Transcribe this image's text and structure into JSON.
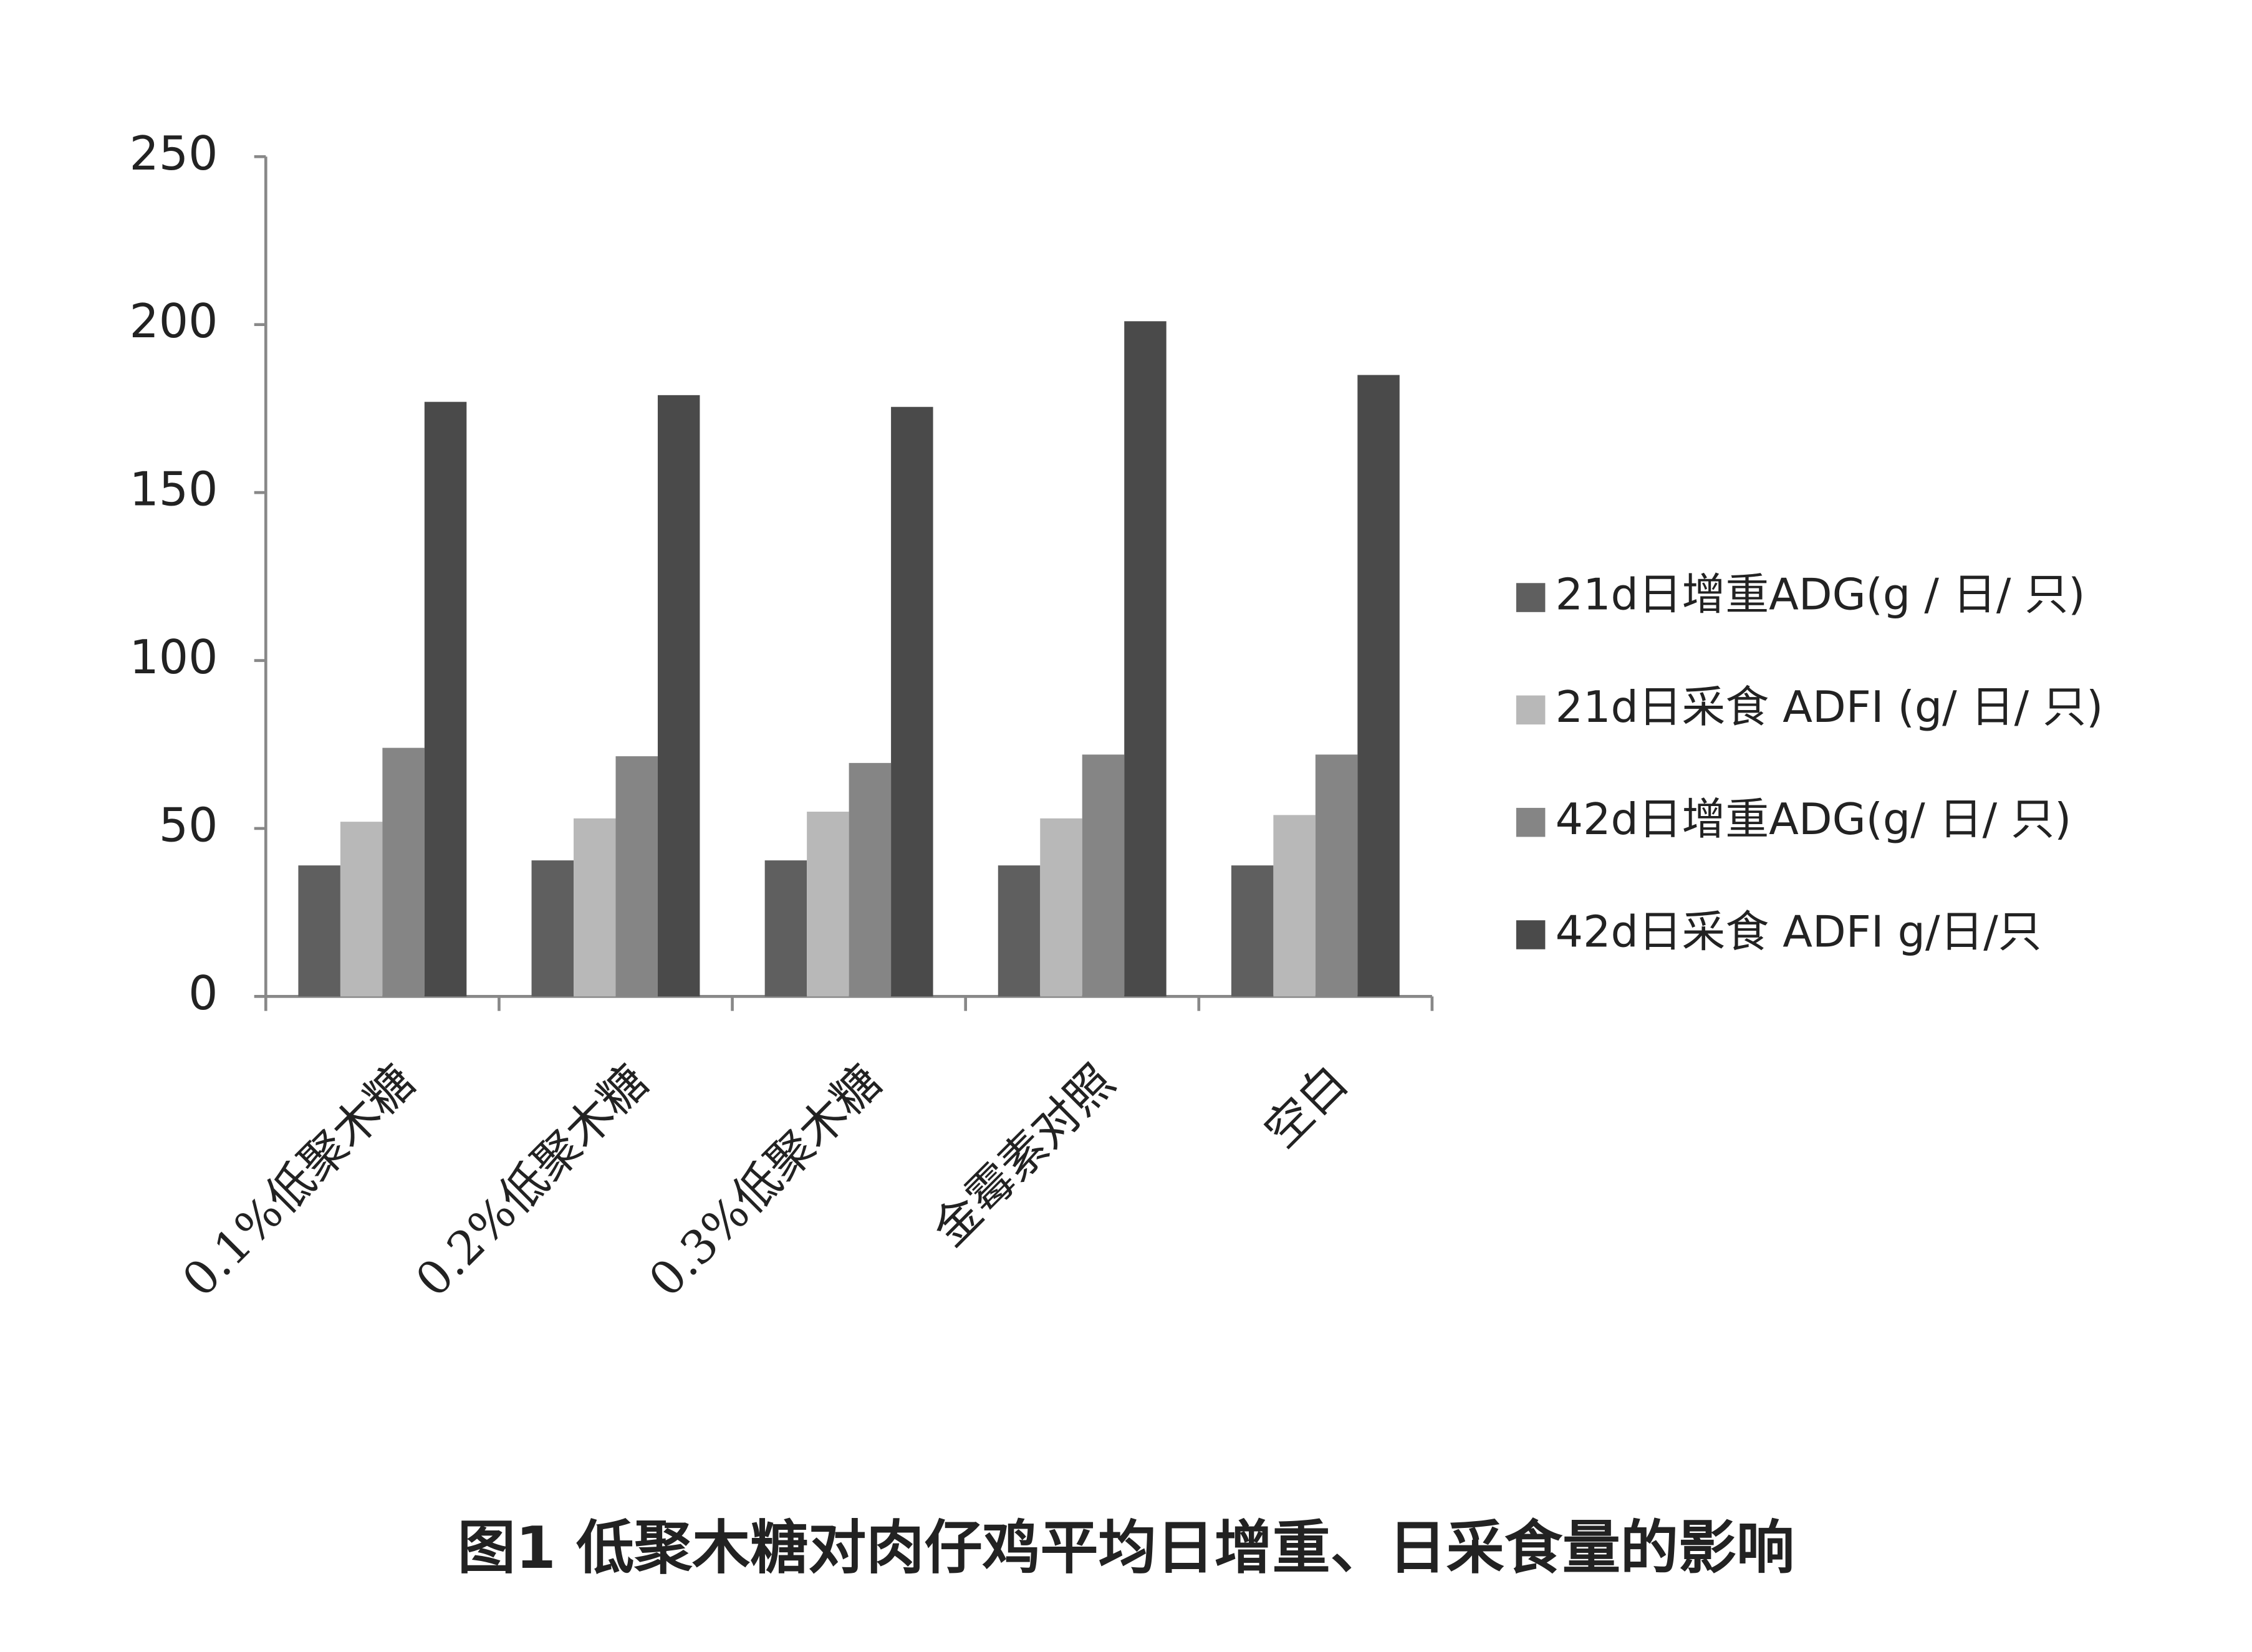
{
  "chart_data": {
    "type": "bar",
    "title": "图1 低聚木糖对肉仔鸡平均日增重、日采食量的影响",
    "categories": [
      "0.1%低聚木糖",
      "0.2%低聚木糖",
      "0.3%低聚木糖",
      "金霉素对照",
      "空白"
    ],
    "series": [
      {
        "name": "21d日增重ADG(g / 日/ 只)",
        "color": "#5f5f5f",
        "values": [
          39,
          40.5,
          40.5,
          39,
          39
        ]
      },
      {
        "name": "21d日采食 ADFI (g/ 日/ 只)",
        "color": "#b8b8b8",
        "values": [
          52,
          53,
          55,
          53,
          54
        ]
      },
      {
        "name": "42d日增重ADG(g/ 日/ 只)",
        "color": "#858585",
        "values": [
          74,
          71.5,
          69.5,
          72,
          72
        ]
      },
      {
        "name": "42d日采食 ADFI g/日/只",
        "color": "#4a4a4a",
        "values": [
          177,
          179,
          175.5,
          201,
          185
        ]
      }
    ],
    "ylim": [
      0,
      250
    ],
    "yticks": [
      0,
      50,
      100,
      150,
      200,
      250
    ],
    "grid": false,
    "legend": "right"
  }
}
